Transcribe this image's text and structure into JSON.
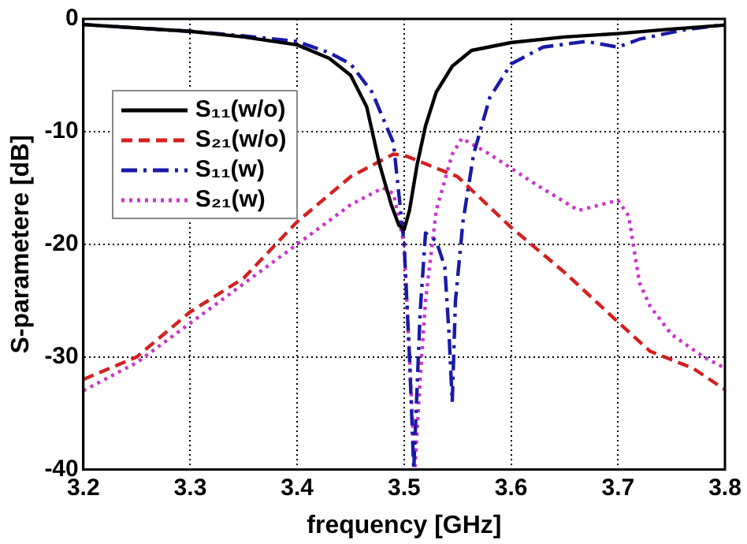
{
  "chart_data": {
    "type": "line",
    "xlabel": "frequency [GHz]",
    "ylabel": "S-parametere [dB]",
    "xlim": [
      3.2,
      3.8
    ],
    "ylim": [
      -40,
      0
    ],
    "xticks": [
      3.2,
      3.3,
      3.4,
      3.5,
      3.6,
      3.7,
      3.8
    ],
    "yticks": [
      -40,
      -30,
      -20,
      -10,
      0
    ],
    "grid": true,
    "legend": "top left",
    "marker": "none",
    "series": [
      {
        "name": "S₁₁(w/o)",
        "color": "#000000",
        "line_style": "solid",
        "x": [
          3.2,
          3.25,
          3.3,
          3.35,
          3.4,
          3.43,
          3.45,
          3.465,
          3.477,
          3.488,
          3.495,
          3.5,
          3.505,
          3.512,
          3.52,
          3.53,
          3.545,
          3.563,
          3.6,
          3.65,
          3.7,
          3.75,
          3.8
        ],
        "values": [
          -0.5,
          -0.8,
          -1.1,
          -1.6,
          -2.3,
          -3.5,
          -5,
          -7.8,
          -12.9,
          -16.5,
          -18.3,
          -18.7,
          -17,
          -13,
          -9.5,
          -6.5,
          -4.2,
          -2.8,
          -2.1,
          -1.6,
          -1.3,
          -0.9,
          -0.55
        ]
      },
      {
        "name": "S₂₁(w/o)",
        "color": "#d42020",
        "line_style": "dashed",
        "x": [
          3.2,
          3.25,
          3.3,
          3.35,
          3.4,
          3.45,
          3.49,
          3.5,
          3.55,
          3.6,
          3.65,
          3.7,
          3.73,
          3.77,
          3.8
        ],
        "values": [
          -32,
          -30,
          -26,
          -23,
          -18,
          -14,
          -12,
          -12.1,
          -14,
          -18.5,
          -22.5,
          -26.9,
          -29.5,
          -31,
          -32.9
        ]
      },
      {
        "name": "S₁₁(w)",
        "color": "#1a1aa8",
        "line_style": "dashdot",
        "x": [
          3.2,
          3.25,
          3.3,
          3.35,
          3.4,
          3.43,
          3.45,
          3.47,
          3.49,
          3.5,
          3.505,
          3.509,
          3.515,
          3.52,
          3.53,
          3.538,
          3.542,
          3.545,
          3.548,
          3.555,
          3.565,
          3.58,
          3.6,
          3.63,
          3.67,
          3.7,
          3.72,
          3.76,
          3.8
        ],
        "values": [
          -0.5,
          -0.8,
          -1.1,
          -1.5,
          -2,
          -3,
          -4,
          -6.5,
          -11,
          -20,
          -30,
          -40,
          -26,
          -19,
          -19.7,
          -22,
          -28,
          -34,
          -25,
          -18,
          -12,
          -7,
          -4,
          -2.5,
          -2,
          -2.5,
          -1.8,
          -1,
          -0.5
        ]
      },
      {
        "name": "S₂₁(w)",
        "color": "#cc33cc",
        "line_style": "dotted",
        "x": [
          3.2,
          3.25,
          3.3,
          3.35,
          3.4,
          3.45,
          3.48,
          3.49,
          3.5,
          3.505,
          3.51,
          3.515,
          3.52,
          3.53,
          3.545,
          3.554,
          3.58,
          3.62,
          3.663,
          3.7,
          3.71,
          3.72,
          3.73,
          3.75,
          3.78,
          3.8
        ],
        "values": [
          -33,
          -30.5,
          -27,
          -23.5,
          -20,
          -16.5,
          -15,
          -15.5,
          -20,
          -30,
          -40,
          -32,
          -25,
          -17,
          -12,
          -10.6,
          -12,
          -14.5,
          -17,
          -16.1,
          -17.5,
          -23.4,
          -25.5,
          -28,
          -30,
          -31
        ]
      }
    ]
  }
}
